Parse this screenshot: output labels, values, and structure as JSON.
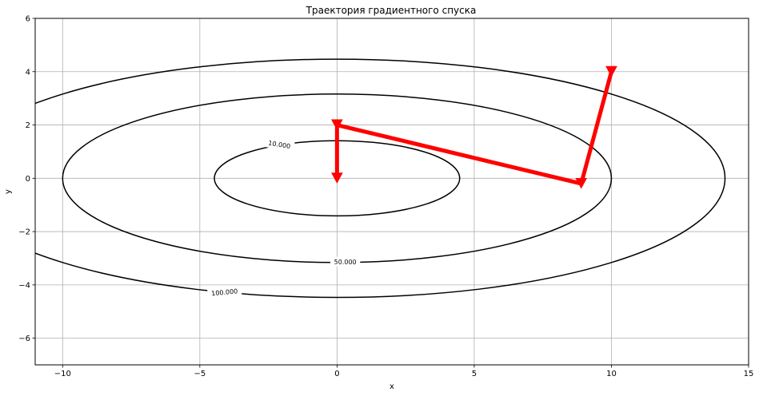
{
  "chart_data": {
    "type": "line",
    "title": "Траектория градиентного спуска",
    "xlabel": "x",
    "ylabel": "y",
    "xlim": [
      -11,
      15
    ],
    "ylim": [
      -7,
      6
    ],
    "grid": true,
    "xticks": [
      -10,
      -5,
      0,
      5,
      10,
      15
    ],
    "xtick_labels": [
      "−10",
      "−5",
      "0",
      "5",
      "10",
      "15"
    ],
    "yticks": [
      -6,
      -4,
      -2,
      0,
      2,
      4,
      6
    ],
    "ytick_labels": [
      "−6",
      "−4",
      "−2",
      "0",
      "2",
      "4",
      "6"
    ],
    "contours": [
      {
        "level": 10,
        "label": "10.000",
        "a": 4.47,
        "b": 1.41,
        "label_at": [
          -2.1,
          1.27
        ]
      },
      {
        "level": 50,
        "label": "50.000",
        "a": 10.0,
        "b": 3.16,
        "label_at": [
          0.3,
          -3.13
        ]
      },
      {
        "level": 100,
        "label": "100.000",
        "a": 14.14,
        "b": 4.47,
        "label_at": [
          -4.1,
          -4.27
        ]
      }
    ],
    "trajectory": {
      "color": "#ff0000",
      "x": [
        10,
        8.9,
        0,
        0
      ],
      "y": [
        4,
        -0.2,
        2,
        0
      ]
    }
  }
}
